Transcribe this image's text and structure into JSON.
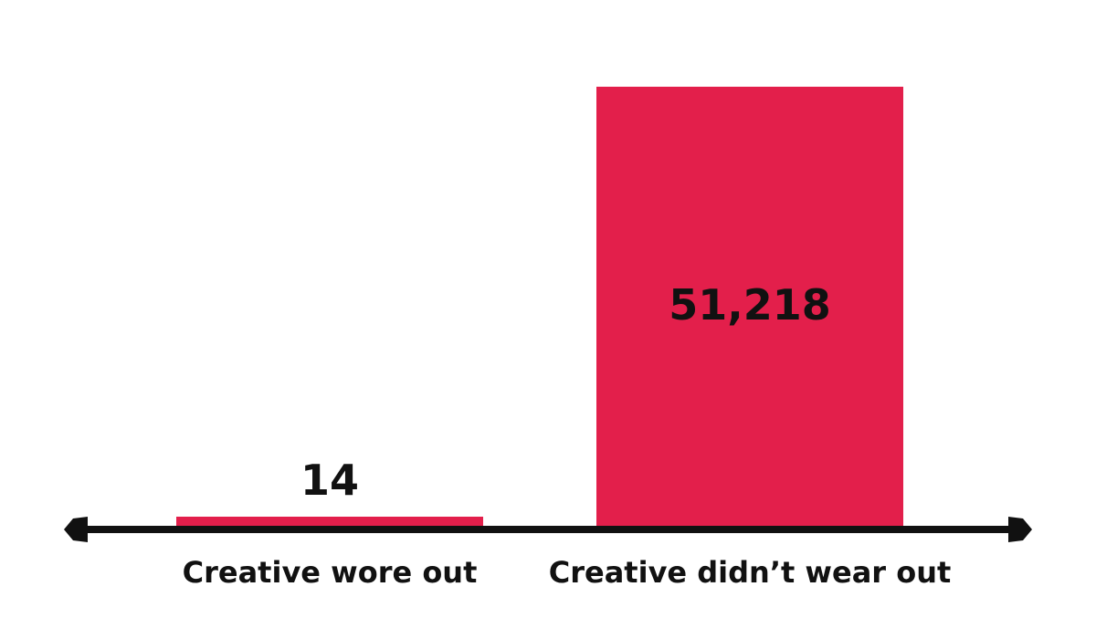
{
  "chart_data": {
    "type": "bar",
    "title": "",
    "xlabel": "",
    "ylabel": "",
    "categories": [
      "Creative wore out",
      "Creative didn’t wear out"
    ],
    "values": [
      14,
      51218
    ],
    "value_labels": [
      "14",
      "51,218"
    ],
    "ylim": [
      0,
      51218
    ],
    "grid": false,
    "legend": "none",
    "colors": {
      "bar": "#e31f4b",
      "axis": "#111111",
      "text": "#111111",
      "background": "#ffffff"
    }
  }
}
